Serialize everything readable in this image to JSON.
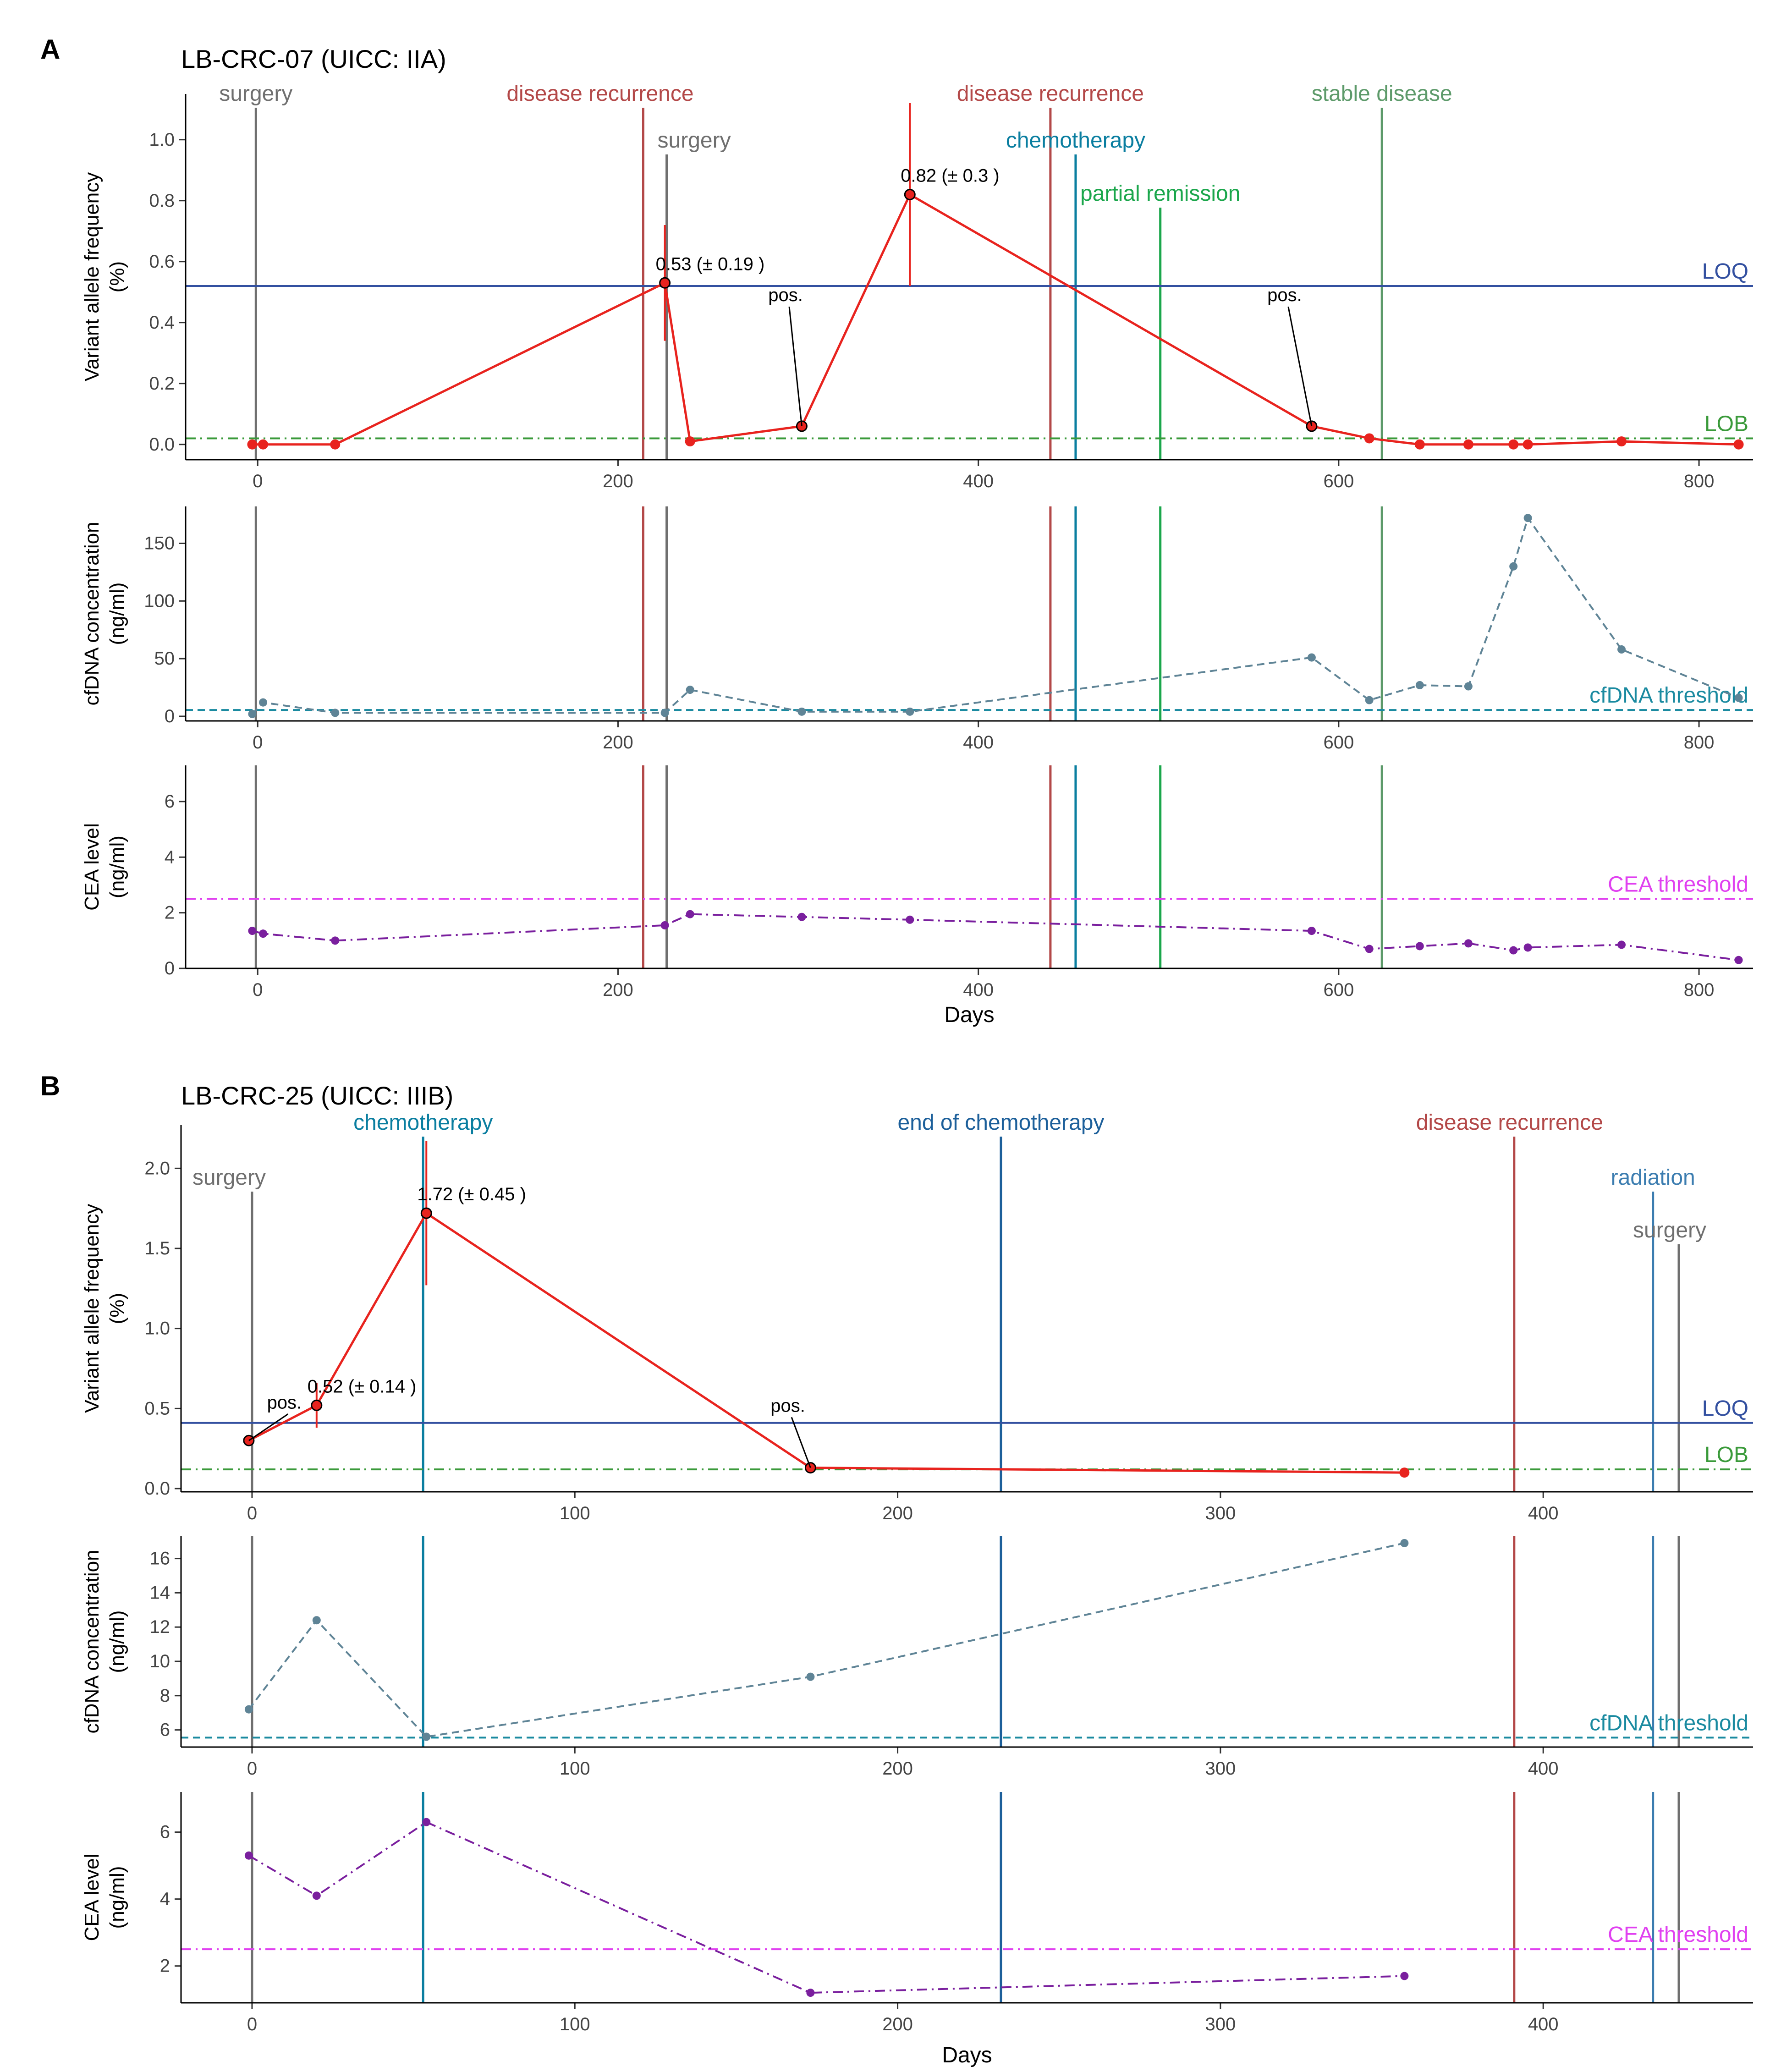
{
  "colors": {
    "vaf": "#e8231e",
    "cfdna": "#5f8496",
    "cea": "#7a1f9e",
    "loq": "#3350a0",
    "lob": "#3a9a3a",
    "cfdna_threshold": "#1a8aa0",
    "cea_threshold": "#e040f0",
    "surgery": "#6f6f6f",
    "recurrence": "#b34848",
    "chemotherapy": "#0a7ea0",
    "partial_remission": "#1aa64b",
    "stable_disease": "#5d9a6a",
    "end_of_chemotherapy": "#1c5f9a",
    "radiation": "#3c7db0"
  },
  "chart_data": [
    {
      "panel_label": "A",
      "type": "line",
      "title": "LB-CRC-07  (UICC: IIA)",
      "xlabel": "Days",
      "xlim": [
        -40,
        830
      ],
      "xticks": [
        0,
        200,
        400,
        600,
        800
      ],
      "events": [
        {
          "day": -1,
          "label": "surgery",
          "color_key": "surgery",
          "label_row": 0,
          "label_offset": 0
        },
        {
          "day": 214,
          "label": "disease recurrence",
          "color_key": "recurrence",
          "label_row": 0,
          "label_offset": -94
        },
        {
          "day": 227,
          "label": "surgery",
          "color_key": "surgery",
          "label_row": 1,
          "label_offset": 60
        },
        {
          "day": 440,
          "label": "disease recurrence",
          "color_key": "recurrence",
          "label_row": 0,
          "label_offset": 0
        },
        {
          "day": 454,
          "label": "chemotherapy",
          "color_key": "chemotherapy",
          "label_row": 1,
          "label_offset": 0
        },
        {
          "day": 501,
          "label": "partial remission",
          "color_key": "partial_remission",
          "label_row": 2,
          "label_offset": 0
        },
        {
          "day": 624,
          "label": "stable disease",
          "color_key": "stable_disease",
          "label_row": 0,
          "label_offset": 0
        }
      ],
      "panels": {
        "vaf": {
          "ylabel": "Variant allele frequency",
          "ylabel2": "(%)",
          "ylim": [
            -0.05,
            1.15
          ],
          "yticks": [
            0.0,
            0.2,
            0.4,
            0.6,
            0.8,
            1.0
          ],
          "thresholds": [
            {
              "name": "LOQ",
              "value": 0.52,
              "color_key": "loq",
              "style": "solid"
            },
            {
              "name": "LOB",
              "value": 0.02,
              "color_key": "lob",
              "style": "dashdot"
            }
          ],
          "x": [
            -3,
            3,
            43,
            226,
            240,
            302,
            362,
            585,
            617,
            645,
            672,
            697,
            705,
            757,
            822
          ],
          "values": [
            0.0,
            0.0,
            0.0,
            0.53,
            0.01,
            0.06,
            0.82,
            0.06,
            0.02,
            0.0,
            0.0,
            0.0,
            0.0,
            0.01,
            0.0
          ],
          "error_bars": [
            {
              "day": 226,
              "value": 0.53,
              "err": 0.19
            },
            {
              "day": 362,
              "value": 0.82,
              "err": 0.3
            }
          ],
          "annotations": [
            {
              "day": 226,
              "value": 0.53,
              "text": "0.53 (± 0.19 )"
            },
            {
              "day": 362,
              "value": 0.82,
              "text": "0.82 (± 0.3 )"
            }
          ],
          "pos_labels": [
            {
              "day": 302,
              "value": 0.06,
              "text": "pos.",
              "text_day": 293,
              "text_value": 0.47
            },
            {
              "day": 585,
              "value": 0.06,
              "text": "pos.",
              "text_day": 570,
              "text_value": 0.47
            }
          ]
        },
        "cfdna": {
          "ylabel": "cfDNA concentration",
          "ylabel2": "(ng/ml)",
          "ylim": [
            -4,
            182
          ],
          "yticks": [
            0,
            50,
            100,
            150
          ],
          "threshold": {
            "name": "cfDNA threshold",
            "value": 5.5
          },
          "x": [
            -3,
            3,
            43,
            226,
            240,
            302,
            362,
            585,
            617,
            645,
            672,
            697,
            705,
            757,
            822
          ],
          "values": [
            2,
            12,
            3,
            3,
            23,
            4,
            4,
            51,
            14,
            27,
            26,
            130,
            172,
            58,
            16
          ]
        },
        "cea": {
          "ylabel": "CEA level",
          "ylabel2": "(ng/ml)",
          "ylim": [
            0,
            7.3
          ],
          "yticks": [
            0,
            2,
            4,
            6
          ],
          "threshold": {
            "name": "CEA threshold",
            "value": 2.5
          },
          "x": [
            -3,
            3,
            43,
            226,
            240,
            302,
            362,
            585,
            617,
            645,
            672,
            697,
            705,
            757,
            822
          ],
          "values": [
            1.35,
            1.25,
            1.0,
            1.55,
            1.95,
            1.85,
            1.75,
            1.35,
            0.7,
            0.8,
            0.9,
            0.65,
            0.75,
            0.85,
            0.3
          ]
        }
      }
    },
    {
      "panel_label": "B",
      "type": "line",
      "title": "LB-CRC-25   (UICC: IIIB)",
      "xlabel": "Days",
      "xlim": [
        -22,
        465
      ],
      "xticks": [
        0,
        100,
        200,
        300,
        400
      ],
      "events": [
        {
          "day": 0,
          "label": "surgery",
          "color_key": "surgery",
          "label_row": 1,
          "label_offset": -50
        },
        {
          "day": 53,
          "label": "chemotherapy",
          "color_key": "chemotherapy",
          "label_row": 0,
          "label_offset": 0
        },
        {
          "day": 232,
          "label": "end of chemotherapy",
          "color_key": "end_of_chemotherapy",
          "label_row": 0,
          "label_offset": 0
        },
        {
          "day": 391,
          "label": "disease recurrence",
          "color_key": "recurrence",
          "label_row": 0,
          "label_offset": -10
        },
        {
          "day": 434,
          "label": "radiation",
          "color_key": "radiation",
          "label_row": 1,
          "label_offset": 0
        },
        {
          "day": 442,
          "label": "surgery",
          "color_key": "surgery",
          "label_row": 2,
          "label_offset": -20
        }
      ],
      "panels": {
        "vaf": {
          "ylabel": "Variant allele frequency",
          "ylabel2": "(%)",
          "ylim": [
            -0.02,
            2.27
          ],
          "yticks": [
            0.0,
            0.5,
            1.0,
            1.5,
            2.0
          ],
          "thresholds": [
            {
              "name": "LOQ",
              "value": 0.41,
              "color_key": "loq",
              "style": "solid"
            },
            {
              "name": "LOB",
              "value": 0.12,
              "color_key": "lob",
              "style": "dashdot"
            }
          ],
          "x": [
            -1,
            20,
            54,
            173,
            357
          ],
          "values": [
            0.3,
            0.52,
            1.72,
            0.13,
            0.1
          ],
          "error_bars": [
            {
              "day": 20,
              "value": 0.52,
              "err": 0.14
            },
            {
              "day": 54,
              "value": 1.72,
              "err": 0.45
            }
          ],
          "annotations": [
            {
              "day": 20,
              "value": 0.52,
              "text": "0.52 (± 0.14 )"
            },
            {
              "day": 54,
              "value": 1.72,
              "text": "1.72 (± 0.45 )"
            }
          ],
          "pos_labels": [
            {
              "day": -1,
              "value": 0.3,
              "text": "pos.",
              "text_day": 10,
              "text_value": 0.5
            },
            {
              "day": 173,
              "value": 0.13,
              "text": "pos.",
              "text_day": 166,
              "text_value": 0.48
            }
          ]
        },
        "cfdna": {
          "ylabel": "cfDNA concentration",
          "ylabel2": "(ng/ml)",
          "ylim": [
            5.0,
            17.3
          ],
          "yticks": [
            6,
            8,
            10,
            12,
            14,
            16
          ],
          "threshold": {
            "name": "cfDNA threshold",
            "value": 5.55
          },
          "x": [
            -1,
            20,
            54,
            173,
            357
          ],
          "values": [
            7.2,
            12.4,
            5.6,
            9.1,
            16.9
          ]
        },
        "cea": {
          "ylabel": "CEA level",
          "ylabel2": "(ng/ml)",
          "ylim": [
            0.9,
            7.2
          ],
          "yticks": [
            2,
            4,
            6
          ],
          "threshold": {
            "name": "CEA threshold",
            "value": 2.5
          },
          "x": [
            -1,
            20,
            54,
            173,
            357
          ],
          "values": [
            5.3,
            4.1,
            6.3,
            1.2,
            1.7
          ]
        }
      }
    }
  ]
}
